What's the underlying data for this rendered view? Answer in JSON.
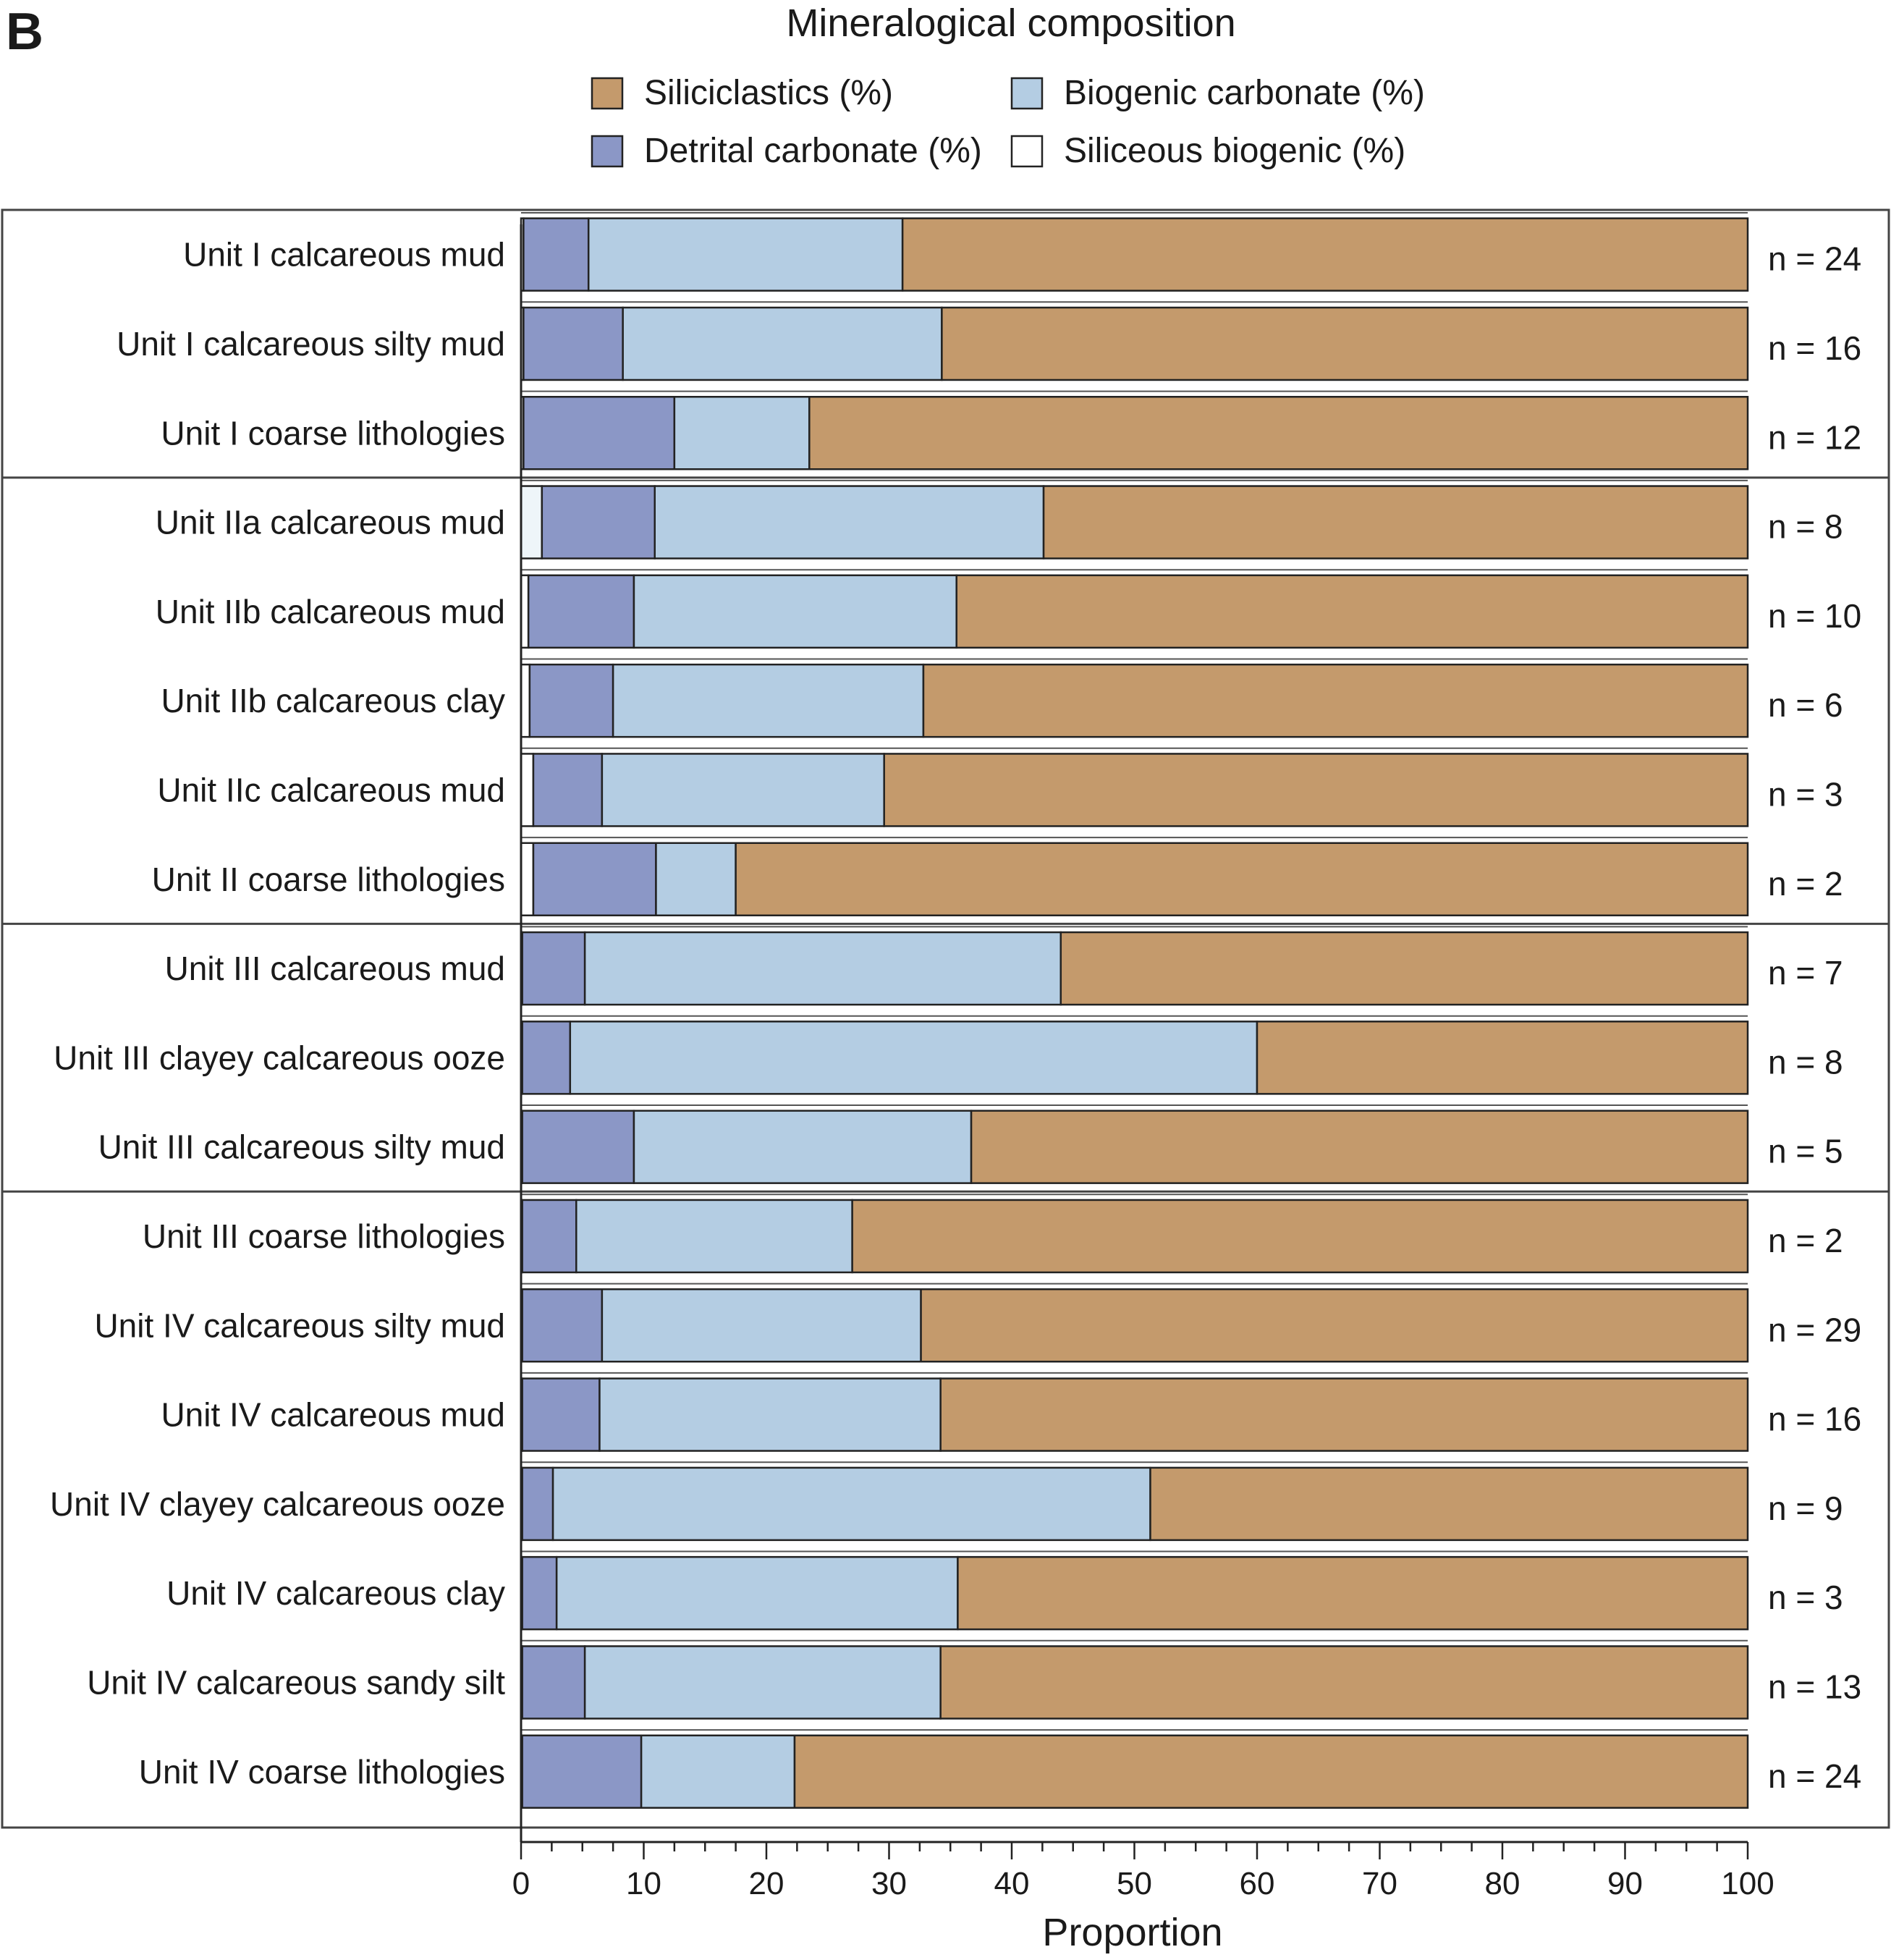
{
  "panel_label": "B",
  "chart_data": {
    "type": "bar",
    "orientation": "horizontal",
    "stacked": true,
    "title": "Mineralogical composition",
    "xlabel": "Proportion",
    "ylabel": "",
    "xlim": [
      0,
      100
    ],
    "xticks": [
      0,
      10,
      20,
      30,
      40,
      50,
      60,
      70,
      80,
      90,
      100
    ],
    "legend_position": "top",
    "categories": [
      "Unit I calcareous mud",
      "Unit I calcareous silty mud",
      "Unit I coarse lithologies",
      "Unit IIa calcareous mud",
      "Unit IIb calcareous mud",
      "Unit IIb calcareous clay",
      "Unit IIc calcareous mud",
      "Unit II coarse lithologies",
      "Unit III calcareous mud",
      "Unit III clayey calcareous ooze",
      "Unit III calcareous silty mud",
      "Unit III coarse lithologies",
      "Unit IV calcareous silty mud",
      "Unit IV calcareous mud",
      "Unit IV clayey calcareous ooze",
      "Unit IV calcareous clay",
      "Unit IV calcareous sandy silt",
      "Unit IV coarse lithologies"
    ],
    "n_labels": [
      "n = 24",
      "n = 16",
      "n = 12",
      "n = 8",
      "n = 10",
      "n = 6",
      "n = 3",
      "n = 2",
      "n = 7",
      "n = 8",
      "n = 5",
      "n = 2",
      "n = 29",
      "n = 16",
      "n = 9",
      "n = 3",
      "n = 13",
      "n = 24"
    ],
    "groups": [
      {
        "start": 0,
        "end": 2
      },
      {
        "start": 3,
        "end": 7
      },
      {
        "start": 8,
        "end": 10
      },
      {
        "start": 11,
        "end": 17
      }
    ],
    "series": [
      {
        "name": "Siliceous biogenic (%)",
        "color": "#ffffff",
        "values": [
          0.2,
          0.2,
          0.2,
          1.7,
          0.6,
          0.7,
          1.0,
          1.0,
          0.1,
          0.1,
          0.1,
          0.1,
          0.1,
          0.1,
          0.1,
          0.1,
          0.1,
          0.1
        ]
      },
      {
        "name": "Detrital carbonate (%)",
        "color": "#8b97c6",
        "values": [
          5.3,
          8.1,
          12.3,
          9.2,
          8.6,
          6.8,
          5.6,
          10.0,
          5.1,
          3.9,
          9.1,
          4.4,
          6.5,
          6.3,
          2.5,
          2.8,
          5.1,
          9.7
        ]
      },
      {
        "name": "Biogenic carbonate (%)",
        "color": "#b4cde3",
        "values": [
          25.6,
          26.0,
          11.0,
          31.7,
          26.3,
          25.3,
          23.0,
          6.5,
          38.8,
          56.0,
          27.5,
          22.5,
          26.0,
          27.8,
          48.7,
          32.7,
          29.0,
          12.5
        ]
      },
      {
        "name": "Siliciclastics (%)",
        "color": "#c49a6c",
        "values": [
          68.9,
          65.7,
          76.5,
          57.4,
          64.5,
          67.2,
          70.4,
          82.5,
          56.0,
          40.0,
          63.3,
          73.0,
          67.4,
          65.8,
          48.7,
          64.4,
          65.8,
          77.7
        ]
      }
    ],
    "legend": [
      {
        "label": "Siliciclastics (%)",
        "color": "#c49a6c"
      },
      {
        "label": "Biogenic carbonate (%)",
        "color": "#b4cde3"
      },
      {
        "label": "Detrital carbonate (%)",
        "color": "#8b97c6"
      },
      {
        "label": "Siliceous biogenic (%)",
        "color": "#ffffff"
      }
    ],
    "siliceous_fill_light": "#eef5f9"
  }
}
